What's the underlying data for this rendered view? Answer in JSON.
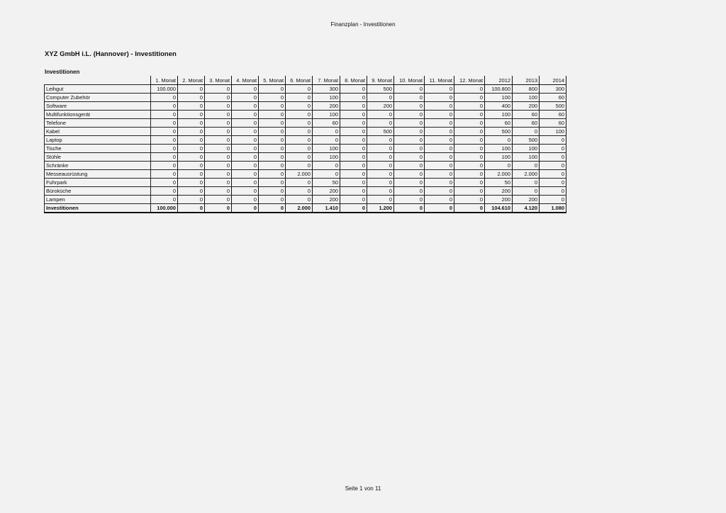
{
  "header": "Finanzplan - Investitionen",
  "title": "XYZ GmbH i.L. (Hannover)  - Investitionen",
  "section": "Investitionen",
  "footer": "Seite 1 von 11",
  "table": {
    "columns": [
      "1. Monat",
      "2. Monat",
      "3. Monat",
      "4. Monat",
      "5. Monat",
      "6. Monat",
      "7. Monat",
      "8. Monat",
      "9. Monat",
      "10. Monat",
      "11. Monat",
      "12. Monat",
      "2012",
      "2013",
      "2014"
    ],
    "rows": [
      {
        "label": "Leihgut",
        "values": [
          "100.000",
          "0",
          "0",
          "0",
          "0",
          "0",
          "300",
          "0",
          "500",
          "0",
          "0",
          "0",
          "100.800",
          "800",
          "300"
        ]
      },
      {
        "label": "Computer Zubehör",
        "values": [
          "0",
          "0",
          "0",
          "0",
          "0",
          "0",
          "100",
          "0",
          "0",
          "0",
          "0",
          "0",
          "100",
          "100",
          "60"
        ]
      },
      {
        "label": "Software",
        "values": [
          "0",
          "0",
          "0",
          "0",
          "0",
          "0",
          "200",
          "0",
          "200",
          "0",
          "0",
          "0",
          "400",
          "200",
          "500"
        ]
      },
      {
        "label": "Multifunktionsgerät",
        "values": [
          "0",
          "0",
          "0",
          "0",
          "0",
          "0",
          "100",
          "0",
          "0",
          "0",
          "0",
          "0",
          "100",
          "60",
          "60"
        ]
      },
      {
        "label": "Telefone",
        "values": [
          "0",
          "0",
          "0",
          "0",
          "0",
          "0",
          "60",
          "0",
          "0",
          "0",
          "0",
          "0",
          "60",
          "60",
          "60"
        ]
      },
      {
        "label": "Kabel",
        "values": [
          "0",
          "0",
          "0",
          "0",
          "0",
          "0",
          "0",
          "0",
          "500",
          "0",
          "0",
          "0",
          "500",
          "0",
          "100"
        ]
      },
      {
        "label": "Laptop",
        "values": [
          "0",
          "0",
          "0",
          "0",
          "0",
          "0",
          "0",
          "0",
          "0",
          "0",
          "0",
          "0",
          "0",
          "500",
          "0"
        ]
      },
      {
        "label": "Tische",
        "values": [
          "0",
          "0",
          "0",
          "0",
          "0",
          "0",
          "100",
          "0",
          "0",
          "0",
          "0",
          "0",
          "100",
          "100",
          "0"
        ]
      },
      {
        "label": "Stühle",
        "values": [
          "0",
          "0",
          "0",
          "0",
          "0",
          "0",
          "100",
          "0",
          "0",
          "0",
          "0",
          "0",
          "100",
          "100",
          "0"
        ]
      },
      {
        "label": "Schränke",
        "values": [
          "0",
          "0",
          "0",
          "0",
          "0",
          "0",
          "0",
          "0",
          "0",
          "0",
          "0",
          "0",
          "0",
          "0",
          "0"
        ]
      },
      {
        "label": "Messeausrüstung",
        "values": [
          "0",
          "0",
          "0",
          "0",
          "0",
          "2.000",
          "0",
          "0",
          "0",
          "0",
          "0",
          "0",
          "2.000",
          "2.000",
          "0"
        ]
      },
      {
        "label": "Fuhrpark",
        "values": [
          "0",
          "0",
          "0",
          "0",
          "0",
          "0",
          "50",
          "0",
          "0",
          "0",
          "0",
          "0",
          "50",
          "0",
          "0"
        ]
      },
      {
        "label": "Büroküche",
        "values": [
          "0",
          "0",
          "0",
          "0",
          "0",
          "0",
          "200",
          "0",
          "0",
          "0",
          "0",
          "0",
          "200",
          "0",
          "0"
        ]
      },
      {
        "label": "Lampen",
        "values": [
          "0",
          "0",
          "0",
          "0",
          "0",
          "0",
          "200",
          "0",
          "0",
          "0",
          "0",
          "0",
          "200",
          "200",
          "0"
        ]
      }
    ],
    "total": {
      "label": "Investitionen",
      "values": [
        "100.000",
        "0",
        "0",
        "0",
        "0",
        "2.000",
        "1.410",
        "0",
        "1.200",
        "0",
        "0",
        "0",
        "104.610",
        "4.120",
        "1.080"
      ]
    }
  }
}
